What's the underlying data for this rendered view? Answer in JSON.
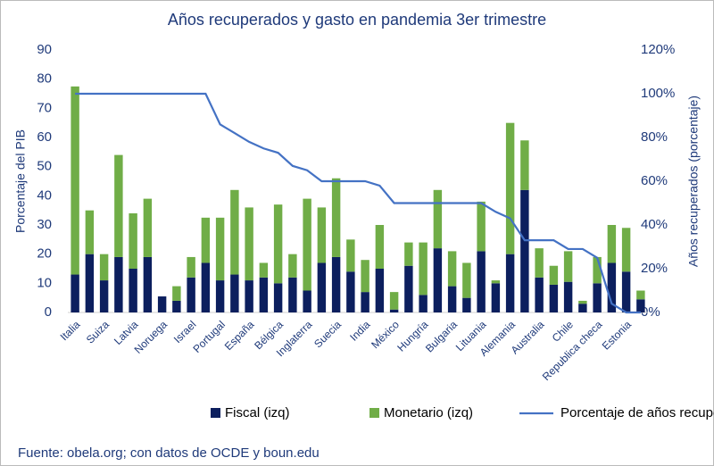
{
  "chart_data": {
    "type": "bar",
    "title": "Años recuperados y gasto en pandemia 3er trimestre",
    "y_label": "Porcentaje del PIB",
    "y2_label": "Años recuperados (porcentaje)",
    "source": "Fuente: obela.org; con datos de OCDE y boun.edu",
    "stacked": true,
    "categories": [
      "Italia",
      null,
      "Suiza",
      null,
      "Latvia",
      null,
      "Noruega",
      null,
      "Israel",
      null,
      "Portugal",
      null,
      "España",
      null,
      "Bélgica",
      null,
      "Inglaterra",
      null,
      "Suecia",
      null,
      "India",
      null,
      "México",
      null,
      "Hungría",
      null,
      "Bulgaria",
      null,
      "Lituania",
      null,
      "Alemania",
      null,
      "Australia",
      null,
      "Chile",
      null,
      "Republica checa",
      null,
      "Estonia",
      null
    ],
    "series": [
      {
        "name": "Fiscal (izq)",
        "color": "#0c1f5e",
        "values": [
          13,
          20,
          11,
          19,
          15,
          19,
          5.5,
          4,
          12,
          17,
          11,
          13,
          11,
          12,
          10,
          12,
          7.5,
          17,
          19,
          14,
          7,
          15,
          1,
          16,
          6,
          22,
          9,
          5,
          21,
          10,
          20,
          42,
          12,
          9.5,
          10.5,
          3,
          10,
          17,
          14,
          4.5
        ]
      },
      {
        "name": "Monetario (izq)",
        "color": "#70ad47",
        "values": [
          64.5,
          15,
          9,
          35,
          19,
          20,
          0,
          5,
          7,
          15.5,
          21.5,
          29,
          25,
          5,
          27,
          8,
          31.5,
          19,
          27,
          11,
          11,
          15,
          6,
          8,
          18,
          20,
          12,
          12,
          17,
          1,
          45,
          17,
          10,
          6.5,
          10.5,
          1,
          9,
          13,
          15,
          3
        ]
      },
      {
        "name": "Porcentaje de años recuperados (der)",
        "color": "#4472c4",
        "type": "line",
        "axis": "y2",
        "values": [
          100,
          100,
          100,
          100,
          100,
          100,
          100,
          100,
          100,
          100,
          86,
          82,
          78,
          75,
          73,
          67,
          65,
          60,
          60,
          60,
          60,
          58,
          50,
          50,
          50,
          50,
          50,
          50,
          50,
          46,
          43,
          33,
          33,
          33,
          29,
          29,
          25,
          4,
          0,
          0
        ]
      }
    ],
    "ylim": [
      0,
      90
    ],
    "yticks": [
      0,
      10,
      20,
      30,
      40,
      50,
      60,
      70,
      80,
      90
    ],
    "y2lim": [
      0,
      120
    ],
    "y2ticks": [
      {
        "value": 0,
        "label": "0%"
      },
      {
        "value": 20,
        "label": "20%"
      },
      {
        "value": 40,
        "label": "40%"
      },
      {
        "value": 60,
        "label": "60%"
      },
      {
        "value": 80,
        "label": "80%"
      },
      {
        "value": 100,
        "label": "100%"
      },
      {
        "value": 120,
        "label": "120%"
      }
    ],
    "grid": false,
    "legend": "bottom"
  }
}
